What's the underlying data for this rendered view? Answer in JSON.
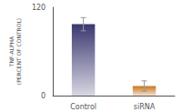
{
  "chart_data": {
    "type": "bar",
    "categories": [
      "Control",
      "siRNA"
    ],
    "values": [
      97,
      13
    ],
    "errors": [
      9,
      7
    ],
    "colors": [
      "#3a3870",
      "#c8751a"
    ],
    "ylabel": "TNF-ALPHA\n(PERCENT OF CONTROL)",
    "ylim": [
      0,
      120
    ],
    "yticks": [
      0,
      120
    ],
    "grid": false
  }
}
